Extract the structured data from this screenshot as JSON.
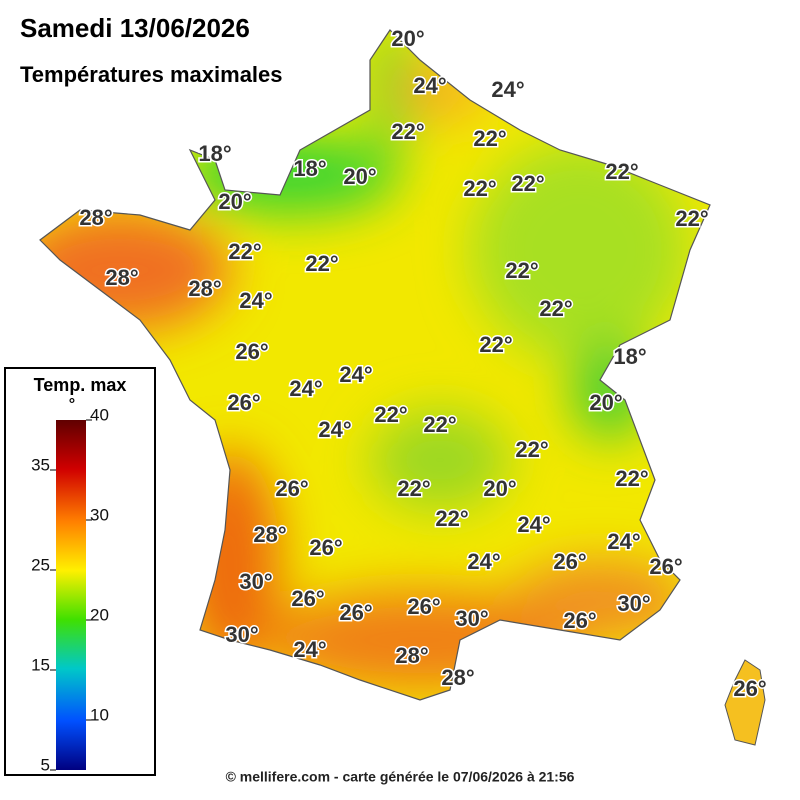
{
  "header": {
    "title": "Samedi 13/06/2026",
    "subtitle": "Températures maximales"
  },
  "map": {
    "labels": [
      "20°",
      "24°",
      "24°",
      "22°",
      "22°",
      "18°",
      "18°",
      "20°",
      "22°",
      "22°",
      "22°",
      "20°",
      "28°",
      "22°",
      "22°",
      "22°",
      "28°",
      "28°",
      "22°",
      "24°",
      "22°",
      "22°",
      "26°",
      "18°",
      "24°",
      "24°",
      "26°",
      "20°",
      "24°",
      "22°",
      "22°",
      "22°",
      "22°",
      "26°",
      "22°",
      "20°",
      "22°",
      "24°",
      "28°",
      "26°",
      "24°",
      "24°",
      "26°",
      "26°",
      "30°",
      "26°",
      "26°",
      "26°",
      "30°",
      "30°",
      "26°",
      "30°",
      "24°",
      "28°",
      "28°",
      "26°"
    ]
  },
  "legend": {
    "title": "Temp. max",
    "unit": "°",
    "range": [
      5,
      40
    ],
    "ticks": [
      40,
      35,
      30,
      25,
      20,
      15,
      10,
      5
    ]
  },
  "footer": "© mellifere.com - carte générée le 07/06/2026 à 21:56"
}
